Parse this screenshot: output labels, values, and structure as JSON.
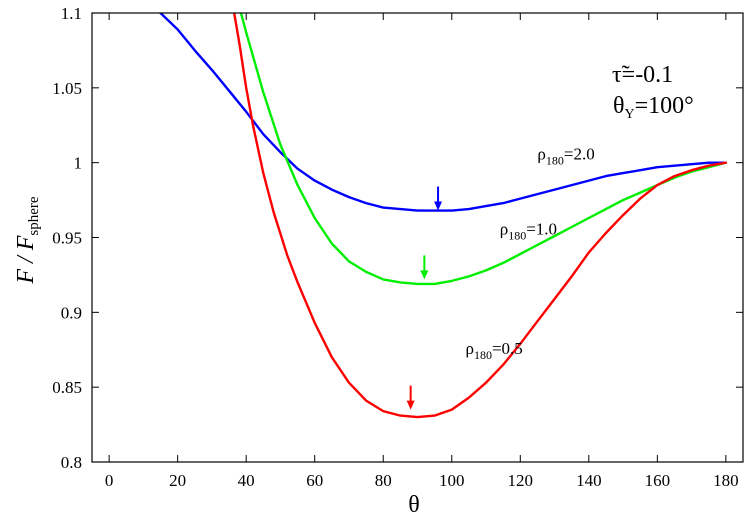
{
  "chart_data": {
    "type": "line",
    "xlabel": "θ",
    "ylabel": {
      "main": "F / F",
      "sub": "sphere"
    },
    "xlim": [
      -5,
      185
    ],
    "ylim": [
      0.8,
      1.1
    ],
    "xticks": [
      0,
      20,
      40,
      60,
      80,
      100,
      120,
      140,
      160,
      180
    ],
    "yticks": [
      0.8,
      0.85,
      0.9,
      0.95,
      1.0,
      1.05,
      1.1
    ],
    "ytick_labels": [
      "0.8",
      "0.85",
      "0.9",
      "0.95",
      "1",
      "1.05",
      "1.1"
    ],
    "grid": false,
    "annotations": {
      "tau": {
        "symbol": "τ̃",
        "text": "=-0.1"
      },
      "theta_y": {
        "symbol": "θ",
        "sub": "Y",
        "text": "=100°"
      }
    },
    "series": [
      {
        "name": "ρ180=2.0",
        "label": {
          "base": "ρ",
          "sub": "180",
          "value": "=2.0"
        },
        "label_at": [
          125,
          1.002
        ],
        "color": "#0000ff",
        "marker": [
          96,
          0.968
        ],
        "x": [
          15,
          20,
          25,
          30,
          35,
          40,
          45,
          50,
          55,
          60,
          65,
          70,
          75,
          80,
          85,
          90,
          95,
          100,
          105,
          110,
          115,
          120,
          125,
          130,
          135,
          140,
          145,
          150,
          155,
          160,
          165,
          170,
          175,
          180
        ],
        "y": [
          1.1,
          1.089,
          1.075,
          1.062,
          1.048,
          1.034,
          1.019,
          1.007,
          0.996,
          0.988,
          0.982,
          0.977,
          0.973,
          0.97,
          0.969,
          0.968,
          0.968,
          0.968,
          0.969,
          0.971,
          0.973,
          0.976,
          0.979,
          0.982,
          0.985,
          0.988,
          0.991,
          0.993,
          0.995,
          0.997,
          0.998,
          0.999,
          1.0,
          1.0
        ]
      },
      {
        "name": "ρ180=1.0",
        "label": {
          "base": "ρ",
          "sub": "180",
          "value": "=1.0"
        },
        "label_at": [
          114,
          0.952
        ],
        "color": "#00ee00",
        "marker": [
          92,
          0.922
        ],
        "x": [
          38.5,
          40,
          45,
          50,
          55,
          60,
          65,
          70,
          75,
          80,
          85,
          90,
          95,
          100,
          105,
          110,
          115,
          120,
          125,
          130,
          135,
          140,
          145,
          150,
          155,
          160,
          165,
          170,
          175,
          180
        ],
        "y": [
          1.1,
          1.087,
          1.047,
          1.012,
          0.985,
          0.963,
          0.946,
          0.934,
          0.927,
          0.922,
          0.92,
          0.919,
          0.919,
          0.921,
          0.924,
          0.928,
          0.933,
          0.939,
          0.945,
          0.951,
          0.957,
          0.963,
          0.969,
          0.975,
          0.98,
          0.985,
          0.99,
          0.994,
          0.997,
          1.0
        ]
      },
      {
        "name": "ρ180=0.5",
        "label": {
          "base": "ρ",
          "sub": "180",
          "value": "=0.5"
        },
        "label_at": [
          104,
          0.872
        ],
        "color": "#ff0000",
        "marker": [
          88,
          0.835
        ],
        "x": [
          36.5,
          38,
          40,
          42,
          45,
          48,
          52,
          55,
          60,
          65,
          70,
          75,
          80,
          85,
          90,
          95,
          100,
          105,
          110,
          115,
          120,
          125,
          130,
          135,
          140,
          145,
          150,
          155,
          160,
          165,
          170,
          175,
          180
        ],
        "y": [
          1.1,
          1.08,
          1.05,
          1.025,
          0.993,
          0.967,
          0.938,
          0.92,
          0.893,
          0.87,
          0.853,
          0.841,
          0.834,
          0.831,
          0.83,
          0.831,
          0.835,
          0.843,
          0.853,
          0.865,
          0.879,
          0.894,
          0.909,
          0.924,
          0.94,
          0.953,
          0.965,
          0.976,
          0.985,
          0.991,
          0.995,
          0.998,
          1.0
        ]
      }
    ]
  }
}
